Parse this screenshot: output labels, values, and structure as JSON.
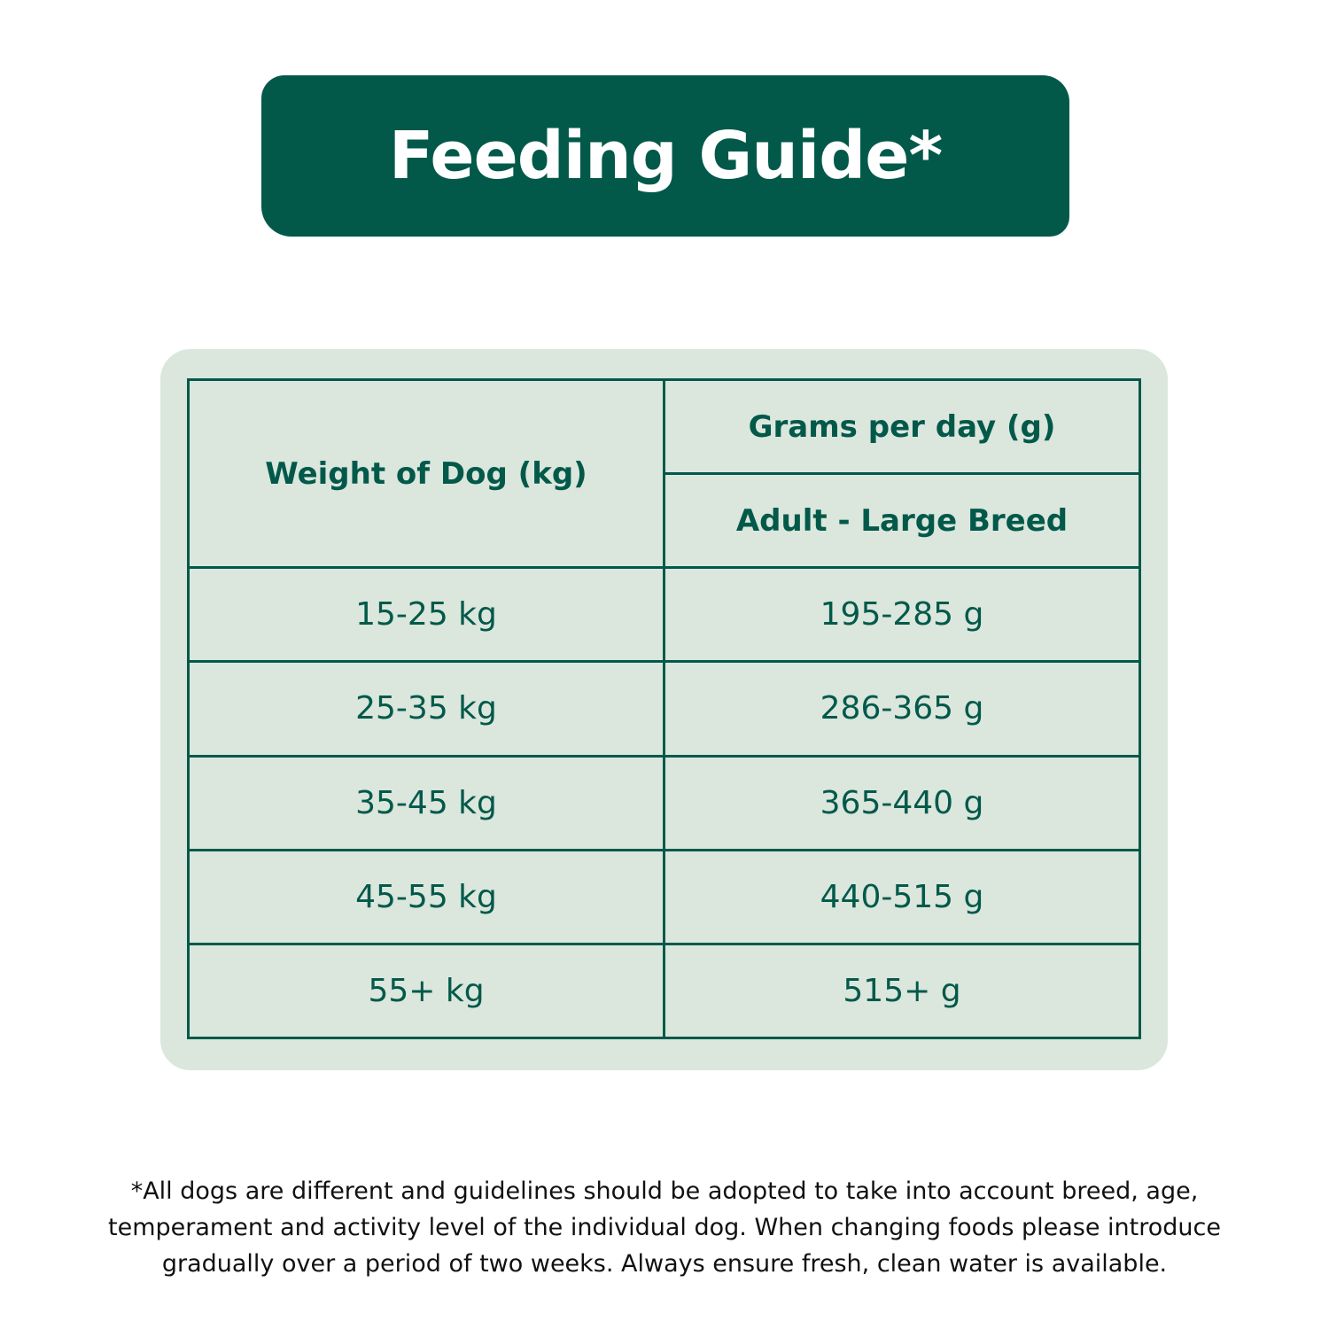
{
  "title": "Feeding Guide*",
  "table": {
    "header_left": "Weight of Dog (kg)",
    "header_right_top": "Grams per day (g)",
    "header_right_sub": "Adult - Large Breed",
    "rows": [
      {
        "weight": "15-25 kg",
        "grams": "195-285 g"
      },
      {
        "weight": "25-35 kg",
        "grams": "286-365 g"
      },
      {
        "weight": "35-45 kg",
        "grams": "365-440 g"
      },
      {
        "weight": "45-55 kg",
        "grams": "440-515 g"
      },
      {
        "weight": "55+ kg",
        "grams": "515+ g"
      }
    ]
  },
  "footnote": "*All dogs are different and guidelines should be adopted to take into account breed, age, temperament and activity level of the individual dog. When changing foods please introduce gradually over a period of two weeks. Always ensure fresh, clean water is available.",
  "colors": {
    "brand_green": "#02594a",
    "card_background": "#dbe6dd"
  }
}
